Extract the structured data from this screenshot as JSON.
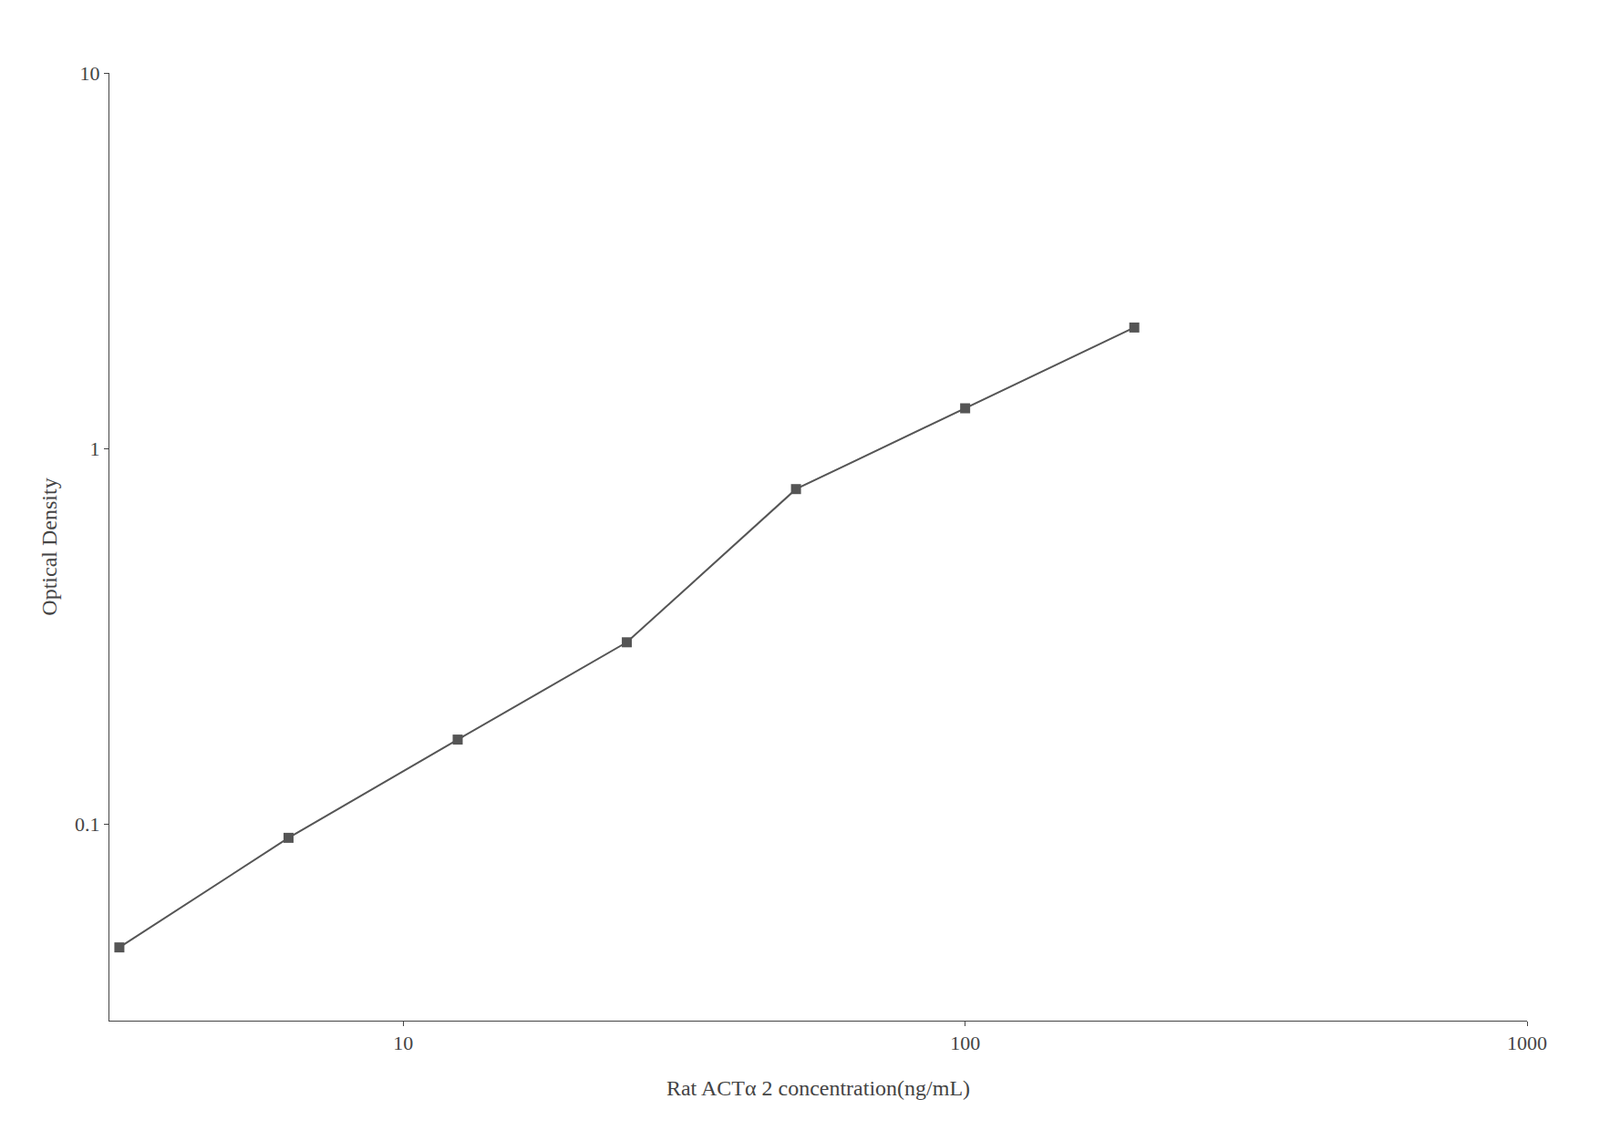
{
  "chart_data": {
    "type": "line",
    "x": [
      3.125,
      6.25,
      12.5,
      25,
      50,
      100,
      200
    ],
    "values": [
      0.047,
      0.092,
      0.168,
      0.305,
      0.78,
      1.28,
      2.1
    ],
    "xlabel": "Rat ACTα 2 concentration(ng/mL)",
    "ylabel": "Optical Density",
    "xlim": [
      3,
      1000
    ],
    "ylim": [
      0.03,
      10
    ],
    "xticks": [
      10,
      100,
      1000
    ],
    "yticks": [
      0.1,
      1,
      10
    ],
    "log": true,
    "grid": false,
    "color": "#555555",
    "marker": "square",
    "line_style": "solid"
  }
}
